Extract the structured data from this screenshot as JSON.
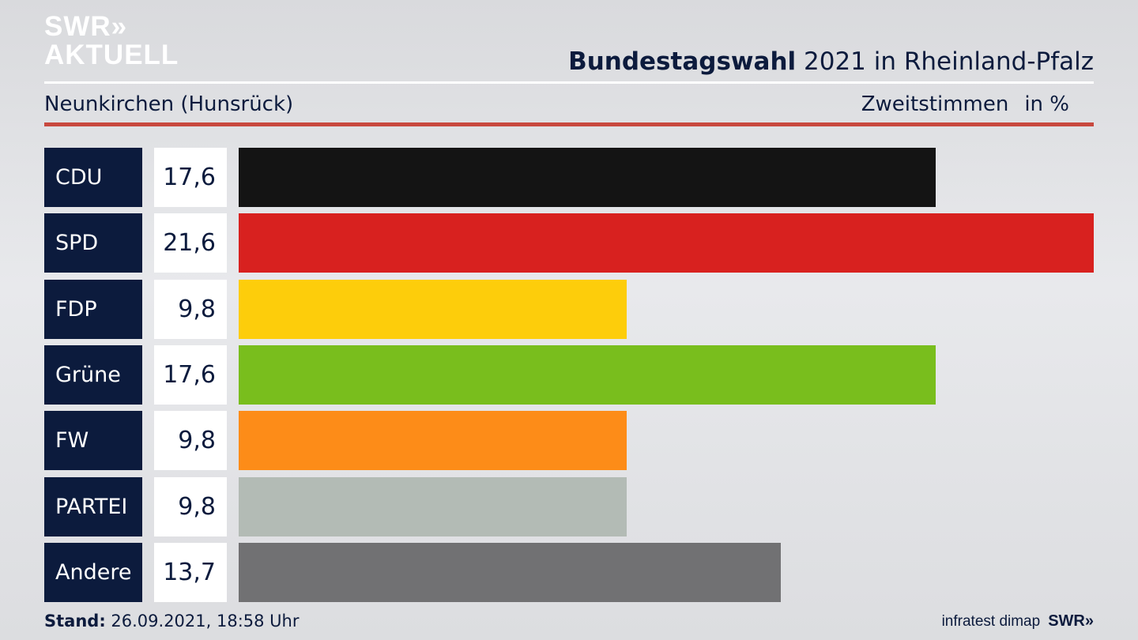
{
  "branding": {
    "logo_line1": "SWR",
    "logo_chevrons": "»",
    "logo_line2": "AKTUELL"
  },
  "header": {
    "title_bold": "Bundestagswahl",
    "title_rest": " 2021 in Rheinland-Pfalz",
    "region": "Neunkirchen (Hunsrück)",
    "measure": "Zweitstimmen",
    "unit": "in %"
  },
  "chart_data": {
    "type": "bar",
    "orientation": "horizontal",
    "categories": [
      "CDU",
      "SPD",
      "FDP",
      "Grüne",
      "FW",
      "PARTEI",
      "Andere"
    ],
    "values": [
      17.6,
      21.6,
      9.8,
      17.6,
      9.8,
      9.8,
      13.7
    ],
    "value_labels": [
      "17,6",
      "21,6",
      "9,8",
      "17,6",
      "9,8",
      "9,8",
      "13,7"
    ],
    "colors": [
      "#141414",
      "#d8211f",
      "#fdcd0b",
      "#79be1d",
      "#fd8c18",
      "#b3bbb5",
      "#717173"
    ],
    "xlim": [
      0,
      21.6
    ],
    "grid": false,
    "legend": "none"
  },
  "footer": {
    "stand_label": "Stand:",
    "stand_value": " 26.09.2021, 18:58 Uhr",
    "source": "infratest dimap",
    "brand": "SWR",
    "brand_chevrons": "»"
  },
  "colors": {
    "navy": "#0c1b3d",
    "accent_red": "#c8483e"
  }
}
